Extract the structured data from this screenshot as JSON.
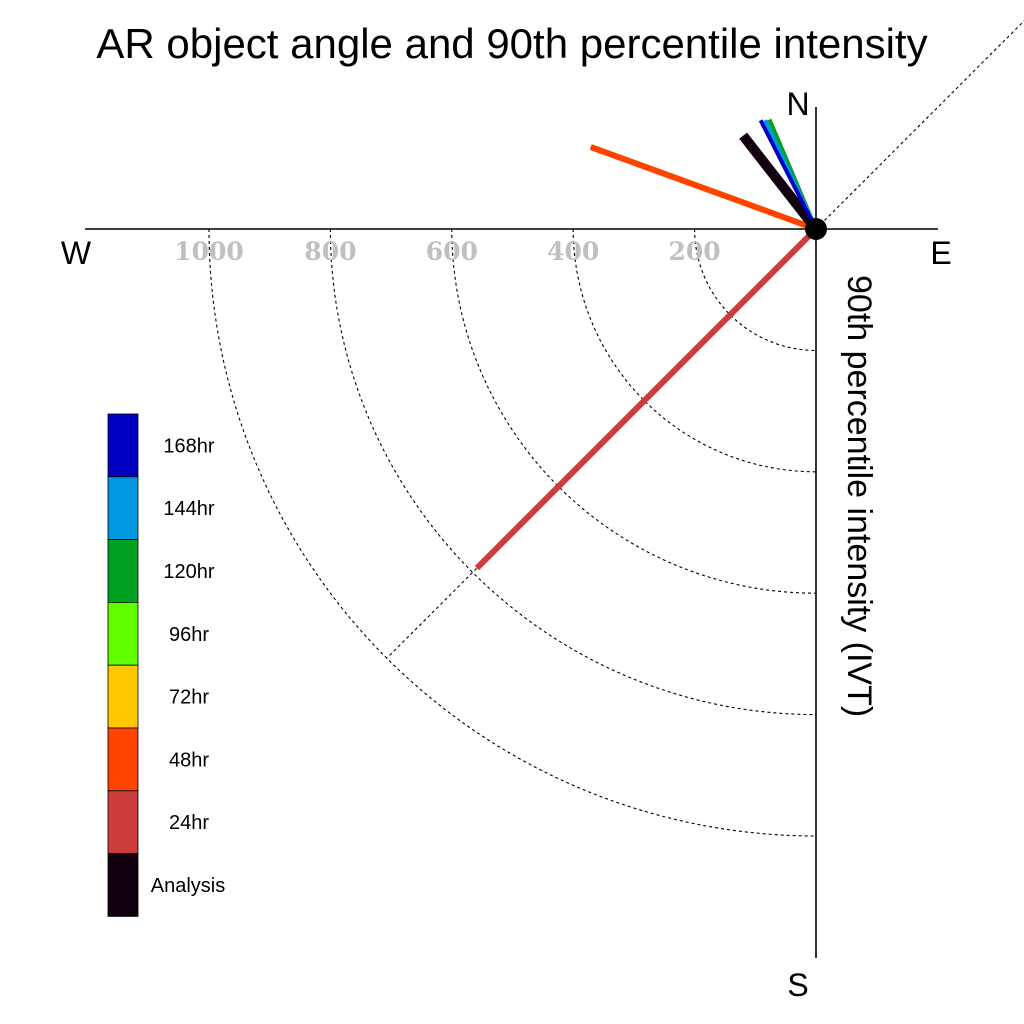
{
  "chart_data": {
    "type": "polar-vector",
    "title": "AR object angle and 90th percentile intensity",
    "axis_label": "90th percentile intensity (IVT)",
    "compass": {
      "north": "N",
      "south": "S",
      "east": "E",
      "west": "W"
    },
    "radial_ticks": [
      200,
      400,
      600,
      800,
      1000
    ],
    "radial_tick_labels": [
      "200",
      "400",
      "600",
      "800",
      "1000"
    ],
    "rmax": 1200,
    "grid": "dashed quarter circles (south-west quadrant)",
    "legend": [
      {
        "label": "168hr",
        "color": "#0000c0"
      },
      {
        "label": "144hr",
        "color": "#0098e0"
      },
      {
        "label": "120hr",
        "color": "#00a020"
      },
      {
        "label": "96hr",
        "color": "#60ff00"
      },
      {
        "label": "72hr",
        "color": "#ffc800"
      },
      {
        "label": "48hr",
        "color": "#ff4400"
      },
      {
        "label": "24hr",
        "color": "#cc3c3c"
      },
      {
        "label": "Analysis",
        "color": "#100010"
      }
    ],
    "series": [
      {
        "name": "24hr",
        "direction_deg": 225,
        "intensity": 790,
        "color": "#cc3c3c"
      },
      {
        "name": "48hr",
        "direction_deg": 290,
        "intensity": 395,
        "color": "#ff4400"
      },
      {
        "name": "Analysis",
        "direction_deg": 322,
        "intensity": 195,
        "color": "#100010"
      },
      {
        "name": "96hr",
        "direction_deg": 336,
        "intensity": 196,
        "color": "#60ff00"
      },
      {
        "name": "120hr",
        "direction_deg": 337,
        "intensity": 196,
        "color": "#00a020"
      },
      {
        "name": "144hr",
        "direction_deg": 335,
        "intensity": 198,
        "color": "#0098e0"
      },
      {
        "name": "168hr",
        "direction_deg": 333,
        "intensity": 201,
        "color": "#0000c0"
      }
    ]
  }
}
